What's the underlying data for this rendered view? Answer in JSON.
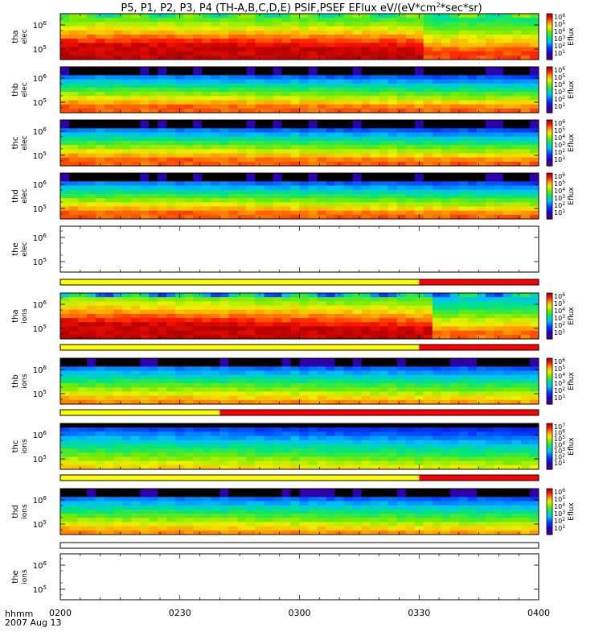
{
  "chart_data": {
    "type": "heatmap",
    "title": "P5, P1, P2, P3, P4 (TH-A,B,C,D,E) PSIF,PSEF EFlux eV/(eV*cm",
    "title_sup": "2",
    "title_end": "*sec*sr)",
    "x_label": "hhmm",
    "date_label": "2007 Aug 13",
    "x_ticks": [
      "0200",
      "0230",
      "0300",
      "0330",
      "0400"
    ],
    "x_range_minutes": [
      0,
      120
    ],
    "y_ticks": [
      {
        "base": "10",
        "exp": "6"
      },
      {
        "base": "10",
        "exp": "5"
      }
    ],
    "colorbar_label": "Eflux",
    "colorbar_ticks_default": [
      "6",
      "5",
      "4",
      "3",
      "2",
      "1"
    ],
    "colorbar_ticks_c_ions": [
      "7",
      "6",
      "5",
      "4",
      "3",
      "2",
      "1"
    ],
    "colorbar_base": "10",
    "panels": [
      {
        "name": "tha",
        "species": "elec",
        "label1": "tha",
        "label2": "elec",
        "has_data": true,
        "profile": "hot_a",
        "colorbar": "default"
      },
      {
        "name": "thb",
        "species": "elec",
        "label1": "thb",
        "label2": "elec",
        "has_data": true,
        "profile": "warm",
        "colorbar": "default"
      },
      {
        "name": "thc",
        "species": "elec",
        "label1": "thc",
        "label2": "elec",
        "has_data": true,
        "profile": "warm",
        "colorbar": "default"
      },
      {
        "name": "thd",
        "species": "elec",
        "label1": "thd",
        "label2": "elec",
        "has_data": true,
        "profile": "warm",
        "colorbar": "default"
      },
      {
        "name": "the",
        "species": "elec",
        "label1": "the",
        "label2": "elec",
        "has_data": false,
        "profile": "none",
        "colorbar": "none"
      },
      {
        "name": "tha",
        "species": "ions",
        "label1": "tha",
        "label2": "ions",
        "has_data": true,
        "profile": "hot_a_ions",
        "colorbar": "default"
      },
      {
        "name": "thb",
        "species": "ions",
        "label1": "thb",
        "label2": "ions",
        "has_data": true,
        "profile": "cool",
        "colorbar": "default"
      },
      {
        "name": "thc",
        "species": "ions",
        "label1": "thc",
        "label2": "ions",
        "has_data": true,
        "profile": "cool_c",
        "colorbar": "c_ions"
      },
      {
        "name": "thd",
        "species": "ions",
        "label1": "thd",
        "label2": "ions",
        "has_data": true,
        "profile": "cool",
        "colorbar": "default"
      },
      {
        "name": "the",
        "species": "ions",
        "label1": "the",
        "label2": "ions",
        "has_data": false,
        "profile": "none",
        "colorbar": "none"
      }
    ],
    "mode_bars": [
      {
        "after_panel": 4,
        "switch_minute": 90,
        "left_color": "#ffff00",
        "right_color": "#ff0000"
      },
      {
        "after_panel": 5,
        "switch_minute": 90,
        "left_color": "#ffff00",
        "right_color": "#ff0000"
      },
      {
        "after_panel": 6,
        "switch_minute": 40,
        "left_color": "#ffff00",
        "right_color": "#ff0000"
      },
      {
        "after_panel": 7,
        "switch_minute": 90,
        "left_color": "#ffff00",
        "right_color": "#ff0000"
      },
      {
        "after_panel": 8,
        "switch_minute": null,
        "left_color": "#ffffff",
        "right_color": "#ffffff"
      }
    ]
  }
}
